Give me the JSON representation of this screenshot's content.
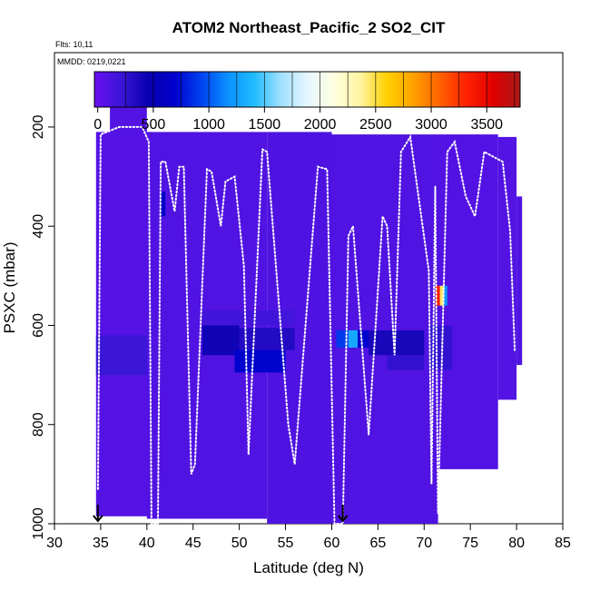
{
  "chart_data": {
    "type": "heatmap",
    "title": "ATOM2 Northeast_Pacific_2 SO2_CIT",
    "annotations": [
      "Flts: 10,11",
      "MMDD: 0219,0221"
    ],
    "xlabel": "Latitude (deg N)",
    "ylabel": "PSXC (mbar)",
    "xlim": [
      30,
      85
    ],
    "ylim": [
      1000,
      50
    ],
    "x_ticks": [
      30,
      35,
      40,
      45,
      50,
      55,
      60,
      65,
      70,
      75,
      80,
      85
    ],
    "y_ticks": [
      200,
      400,
      600,
      800,
      1000
    ],
    "colorbar": {
      "min": -30,
      "max": 3800,
      "ticks": [
        0,
        500,
        1000,
        1500,
        2000,
        2500,
        3000,
        3500
      ],
      "colors": [
        "#6a0ff0",
        "#3a16d6",
        "#0a00b0",
        "#0000cc",
        "#0040f0",
        "#0a90ff",
        "#20bcff",
        "#9fe0ff",
        "#e6f6ff",
        "#ffffe0",
        "#fff4a0",
        "#ffd000",
        "#ffa000",
        "#ff6000",
        "#ff2000",
        "#e00000",
        "#a81818"
      ]
    },
    "background_value": 80,
    "cells": [
      {
        "lat": [
          36,
          40
        ],
        "p": [
          160,
          215
        ],
        "value": 90
      },
      {
        "lat": [
          34.5,
          40.5
        ],
        "p": [
          210,
          985
        ],
        "value": 75
      },
      {
        "lat": [
          40,
          53
        ],
        "p": [
          210,
          990
        ],
        "value": 95
      },
      {
        "lat": [
          53,
          60
        ],
        "p": [
          210,
          1000
        ],
        "value": 110
      },
      {
        "lat": [
          60,
          71.5
        ],
        "p": [
          215,
          1000
        ],
        "value": 100
      },
      {
        "lat": [
          71.5,
          78
        ],
        "p": [
          215,
          890
        ],
        "value": 85
      },
      {
        "lat": [
          78,
          80
        ],
        "p": [
          220,
          750
        ],
        "value": 90
      },
      {
        "lat": [
          80,
          80.6
        ],
        "p": [
          340,
          680
        ],
        "value": 100
      },
      {
        "lat": [
          34.5,
          40
        ],
        "p": [
          620,
          700
        ],
        "value": 200
      },
      {
        "lat": [
          41.5,
          42
        ],
        "p": [
          330,
          380
        ],
        "value": 650
      },
      {
        "lat": [
          46,
          56
        ],
        "p": [
          570,
          600
        ],
        "value": 170
      },
      {
        "lat": [
          46,
          50
        ],
        "p": [
          600,
          660
        ],
        "value": 420
      },
      {
        "lat": [
          50,
          56
        ],
        "p": [
          605,
          650
        ],
        "value": 330
      },
      {
        "lat": [
          49.5,
          55
        ],
        "p": [
          650,
          695
        ],
        "value": 700
      },
      {
        "lat": [
          60.5,
          61.8
        ],
        "p": [
          610,
          645
        ],
        "value": 900
      },
      {
        "lat": [
          61.8,
          62.8
        ],
        "p": [
          610,
          645
        ],
        "value": 1300
      },
      {
        "lat": [
          62.8,
          64
        ],
        "p": [
          610,
          645
        ],
        "value": 700
      },
      {
        "lat": [
          64,
          70
        ],
        "p": [
          610,
          660
        ],
        "value": 380
      },
      {
        "lat": [
          66,
          70
        ],
        "p": [
          660,
          690
        ],
        "value": 250
      },
      {
        "lat": [
          71.2,
          71.7
        ],
        "p": [
          520,
          560
        ],
        "value": 3350
      },
      {
        "lat": [
          71.7,
          72.1
        ],
        "p": [
          520,
          560
        ],
        "value": 2450
      },
      {
        "lat": [
          72.1,
          72.5
        ],
        "p": [
          520,
          560
        ],
        "value": 1200
      },
      {
        "lat": [
          70.5,
          73
        ],
        "p": [
          600,
          690
        ],
        "value": 250
      }
    ],
    "flight_track": [
      [
        34.7,
        930
      ],
      [
        35,
        215
      ],
      [
        37,
        200
      ],
      [
        39.5,
        200
      ],
      [
        40.2,
        230
      ],
      [
        40.5,
        1000
      ],
      [
        41.2,
        1000
      ],
      [
        41.5,
        270
      ],
      [
        42,
        270
      ],
      [
        43,
        370
      ],
      [
        43.5,
        280
      ],
      [
        44,
        280
      ],
      [
        44.8,
        900
      ],
      [
        45.2,
        880
      ],
      [
        46.5,
        285
      ],
      [
        47,
        290
      ],
      [
        48,
        400
      ],
      [
        48.5,
        310
      ],
      [
        49.5,
        300
      ],
      [
        50.5,
        480
      ],
      [
        51,
        860
      ],
      [
        52.5,
        245
      ],
      [
        53,
        250
      ],
      [
        55.3,
        800
      ],
      [
        56,
        880
      ],
      [
        58.5,
        280
      ],
      [
        59.5,
        285
      ],
      [
        60.3,
        1000
      ],
      [
        61.2,
        1000
      ],
      [
        61.8,
        420
      ],
      [
        62.3,
        400
      ],
      [
        64,
        820
      ],
      [
        65.5,
        380
      ],
      [
        66,
        400
      ],
      [
        66.8,
        660
      ],
      [
        67.5,
        250
      ],
      [
        68.5,
        220
      ],
      [
        70.5,
        490
      ],
      [
        70.8,
        920
      ],
      [
        71.2,
        320
      ],
      [
        71.5,
        980
      ],
      [
        72.5,
        250
      ],
      [
        73.3,
        230
      ],
      [
        74.5,
        340
      ],
      [
        75.5,
        380
      ],
      [
        76.5,
        250
      ],
      [
        77.5,
        260
      ],
      [
        78.5,
        270
      ],
      [
        79.3,
        410
      ],
      [
        79.8,
        650
      ]
    ],
    "arrows": [
      34.7,
      61.2
    ]
  }
}
